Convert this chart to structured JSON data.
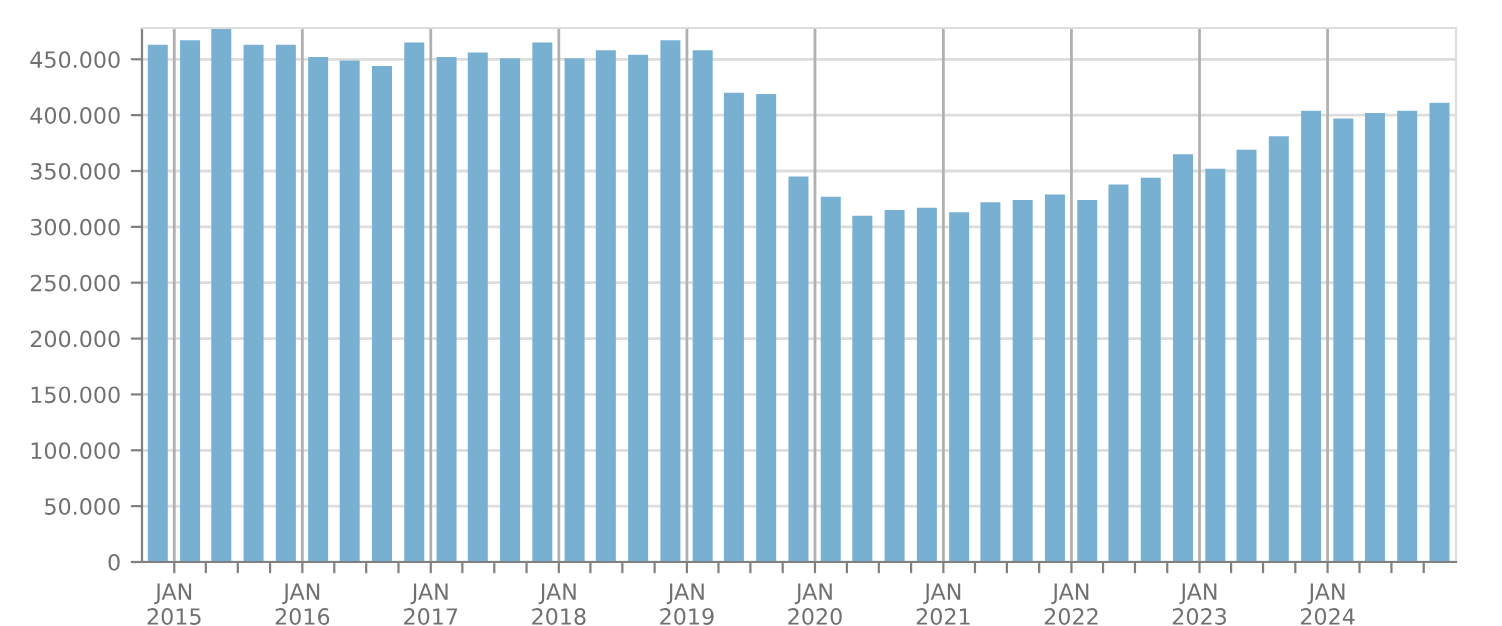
{
  "chart_data": {
    "type": "bar",
    "color": "#78b0d2",
    "x": [
      "2014-11-15",
      "2015-02-15",
      "2015-05-15",
      "2015-08-15",
      "2015-11-15",
      "2016-02-15",
      "2016-05-15",
      "2016-08-15",
      "2016-11-15",
      "2017-02-15",
      "2017-05-15",
      "2017-08-15",
      "2017-11-15",
      "2018-02-15",
      "2018-05-15",
      "2018-08-15",
      "2018-11-15",
      "2019-02-15",
      "2019-05-15",
      "2019-08-15",
      "2019-11-15",
      "2020-02-15",
      "2020-05-15",
      "2020-08-15",
      "2020-11-15",
      "2021-02-15",
      "2021-05-15",
      "2021-08-15",
      "2021-11-15",
      "2022-02-15",
      "2022-05-15",
      "2022-08-15",
      "2022-11-15",
      "2023-02-15",
      "2023-05-15",
      "2023-08-15",
      "2023-11-15",
      "2024-02-15",
      "2024-05-15",
      "2024-08-15",
      "2024-11-15"
    ],
    "values": [
      463000,
      467000,
      477000,
      463000,
      463000,
      452000,
      449000,
      444000,
      465000,
      452000,
      456000,
      451000,
      465000,
      451000,
      458000,
      454000,
      467000,
      458000,
      420000,
      419000,
      345000,
      327000,
      310000,
      315000,
      317000,
      313000,
      322000,
      324000,
      329000,
      324000,
      338000,
      344000,
      365000,
      352000,
      369000,
      381000,
      404000,
      397000,
      402000,
      404000,
      411000
    ],
    "xlim": [
      "2014-10-01",
      "2025-01-01"
    ],
    "xticks": [
      {
        "value": "2015-01-01",
        "label": "JAN\n2015"
      },
      {
        "value": "2015-04-01",
        "label": null
      },
      {
        "value": "2015-07-01",
        "label": null
      },
      {
        "value": "2015-10-01",
        "label": null
      },
      {
        "value": "2016-01-01",
        "label": "JAN\n2016"
      },
      {
        "value": "2016-04-01",
        "label": null
      },
      {
        "value": "2016-07-01",
        "label": null
      },
      {
        "value": "2016-10-01",
        "label": null
      },
      {
        "value": "2017-01-01",
        "label": "JAN\n2017"
      },
      {
        "value": "2017-04-01",
        "label": null
      },
      {
        "value": "2017-07-01",
        "label": null
      },
      {
        "value": "2017-10-01",
        "label": null
      },
      {
        "value": "2018-01-01",
        "label": "JAN\n2018"
      },
      {
        "value": "2018-04-01",
        "label": null
      },
      {
        "value": "2018-07-01",
        "label": null
      },
      {
        "value": "2018-10-01",
        "label": null
      },
      {
        "value": "2019-01-01",
        "label": "JAN\n2019"
      },
      {
        "value": "2019-04-01",
        "label": null
      },
      {
        "value": "2019-07-01",
        "label": null
      },
      {
        "value": "2019-10-01",
        "label": null
      },
      {
        "value": "2020-01-01",
        "label": "JAN\n2020"
      },
      {
        "value": "2020-04-01",
        "label": null
      },
      {
        "value": "2020-07-01",
        "label": null
      },
      {
        "value": "2020-10-01",
        "label": null
      },
      {
        "value": "2021-01-01",
        "label": "JAN\n2021"
      },
      {
        "value": "2021-04-01",
        "label": null
      },
      {
        "value": "2021-07-01",
        "label": null
      },
      {
        "value": "2021-10-01",
        "label": null
      },
      {
        "value": "2022-01-01",
        "label": "JAN\n2022"
      },
      {
        "value": "2022-04-01",
        "label": null
      },
      {
        "value": "2022-07-01",
        "label": null
      },
      {
        "value": "2022-10-01",
        "label": null
      },
      {
        "value": "2023-01-01",
        "label": "JAN\n2023"
      },
      {
        "value": "2023-04-01",
        "label": null
      },
      {
        "value": "2023-07-01",
        "label": null
      },
      {
        "value": "2023-10-01",
        "label": null
      },
      {
        "value": "2024-01-01",
        "label": "JAN\n2024"
      },
      {
        "value": "2024-04-01",
        "label": null
      },
      {
        "value": "2024-07-01",
        "label": null
      },
      {
        "value": "2024-10-01",
        "label": null
      }
    ],
    "ylim": [
      0,
      478000
    ],
    "yticks": [
      0,
      {
        "value": 50000,
        "label": "50.000"
      },
      {
        "value": 100000,
        "label": "100.000"
      },
      {
        "value": 150000,
        "label": "150.000"
      },
      {
        "value": 200000,
        "label": "200.000"
      },
      {
        "value": 250000,
        "label": "250.000"
      },
      {
        "value": 300000,
        "label": "300.000"
      },
      {
        "value": 350000,
        "label": "350.000"
      },
      {
        "value": 400000,
        "label": "400.000"
      },
      {
        "value": 450000,
        "label": "450.000"
      }
    ],
    "grid": true
  }
}
